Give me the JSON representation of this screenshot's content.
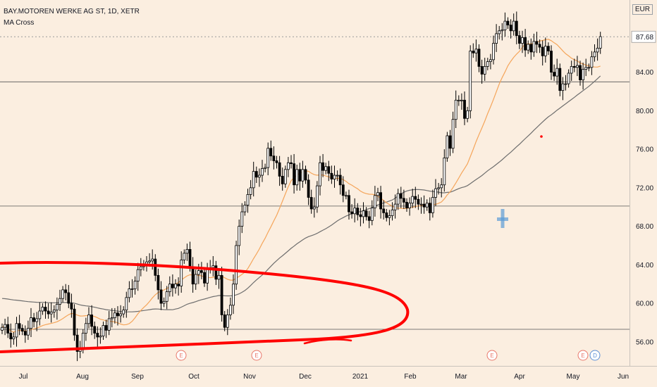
{
  "header": {
    "symbol_line": "BAY.MOTOREN WERKE AG ST, 1D, XETR",
    "indicator": "MA Cross"
  },
  "currency": "EUR",
  "last_price_label": "87.68",
  "colors": {
    "background": "#fbeee0",
    "candle": "#000000",
    "candle_up_fill": "#ffffff",
    "ma_fast": "#f5a55a",
    "ma_slow": "#6e6e6e",
    "annotation": "#ff0000",
    "cross_marker": "#5b9bd5",
    "earnings": "#e8776a",
    "dividend": "#5b8fd5"
  },
  "chart_data": {
    "type": "candlestick",
    "y_axis": {
      "ticks": [
        56,
        60,
        64,
        68,
        72,
        76,
        80,
        84
      ],
      "range": [
        53.5,
        91.5
      ]
    },
    "x_axis": {
      "labels": [
        "Jul",
        "Aug",
        "Sep",
        "Oct",
        "Nov",
        "Dec",
        "2021",
        "Feb",
        "Mar",
        "Apr",
        "May",
        "Jun"
      ]
    },
    "last_price": 87.68,
    "horizontal_lines": [
      83.0,
      70.1,
      57.3
    ],
    "closes": [
      57.5,
      57.8,
      56.9,
      56.3,
      56.5,
      57.9,
      57.4,
      57.1,
      56.7,
      57.4,
      58.5,
      58.1,
      58.4,
      59.2,
      59.6,
      59.2,
      58.9,
      59.1,
      59.3,
      59.9,
      60.5,
      61.4,
      61.1,
      60.0,
      59.4,
      56.7,
      55.0,
      55.2,
      56.9,
      57.9,
      58.8,
      57.6,
      56.9,
      56.5,
      56.6,
      57.7,
      57.2,
      58.4,
      58.5,
      59.0,
      58.7,
      58.9,
      59.3,
      60.6,
      61.5,
      61.5,
      62.3,
      63.5,
      63.8,
      64.1,
      64.3,
      64.4,
      64.6,
      62.9,
      61.4,
      60.0,
      60.2,
      61.2,
      62.0,
      61.6,
      62.0,
      61.8,
      64.5,
      65.2,
      65.6,
      63.8,
      62.0,
      63.0,
      63.4,
      63.2,
      62.1,
      63.6,
      63.7,
      63.9,
      62.5,
      62.9,
      58.8,
      57.5,
      58.8,
      59.8,
      62.0,
      66.0,
      68.0,
      69.5,
      70.2,
      71.3,
      72.0,
      73.7,
      73.1,
      73.3,
      74.0,
      74.1,
      76.1,
      75.3,
      74.8,
      74.6,
      73.2,
      72.4,
      73.9,
      74.6,
      74.5,
      72.3,
      73.9,
      72.7,
      73.9,
      72.8,
      71.0,
      69.8,
      70.0,
      72.2,
      74.6,
      73.8,
      74.2,
      73.5,
      72.9,
      73.3,
      73.3,
      72.3,
      71.2,
      71.2,
      69.5,
      69.3,
      69.9,
      69.2,
      69.0,
      69.6,
      69.0,
      68.6,
      69.9,
      71.2,
      71.5,
      69.8,
      69.4,
      68.9,
      69.1,
      69.7,
      70.3,
      71.4,
      70.9,
      70.5,
      69.9,
      70.4,
      71.1,
      70.8,
      70.3,
      70.3,
      70.0,
      70.4,
      69.4,
      71.0,
      71.9,
      72.0,
      72.3,
      75.1,
      77.4,
      76.1,
      79.1,
      81.1,
      81.1,
      81.1,
      79.2,
      80.0,
      86.2,
      86.0,
      86.4,
      84.6,
      83.8,
      84.6,
      85.1,
      85.3,
      87.0,
      88.0,
      88.3,
      88.4,
      89.3,
      88.9,
      88.3,
      89.3,
      87.8,
      87.0,
      87.6,
      86.3,
      86.9,
      86.1,
      87.2,
      86.9,
      86.6,
      85.7,
      86.7,
      86.2,
      84.0,
      83.6,
      84.4,
      82.1,
      82.8,
      82.8,
      83.9,
      84.6,
      84.5,
      84.7,
      83.2,
      84.3,
      84.5,
      84.5,
      85.6,
      86.1,
      86.5,
      87.7
    ]
  },
  "events": [
    {
      "label": "E",
      "kind": "earnings"
    },
    {
      "label": "E",
      "kind": "earnings"
    },
    {
      "label": "E",
      "kind": "earnings"
    },
    {
      "label": "E",
      "kind": "earnings"
    },
    {
      "label": "D",
      "kind": "dividend"
    }
  ]
}
